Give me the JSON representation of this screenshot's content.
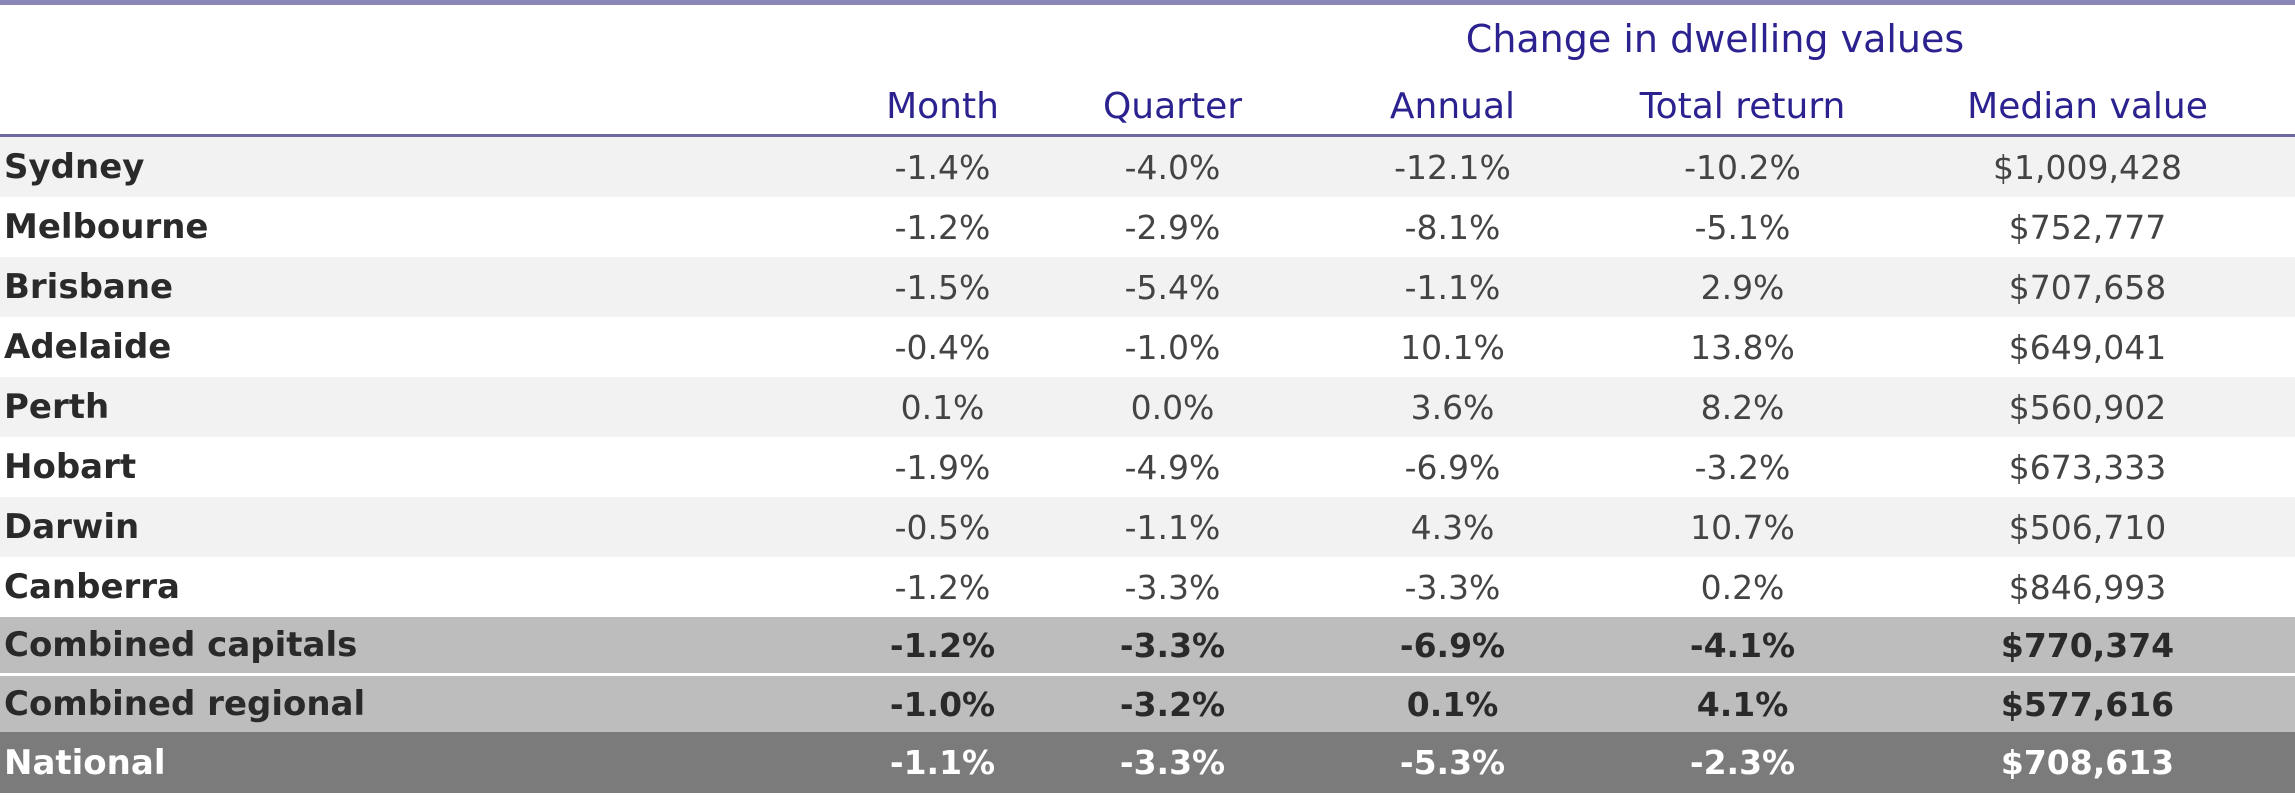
{
  "chart_data": {
    "type": "table",
    "title": "Change in dwelling values",
    "columns": [
      "Month",
      "Quarter",
      "Annual",
      "Total return",
      "Median value"
    ],
    "rows": [
      {
        "name": "Sydney",
        "values": [
          "-1.4%",
          "-4.0%",
          "-12.1%",
          "-10.2%",
          "$1,009,428"
        ],
        "style": "shade"
      },
      {
        "name": "Melbourne",
        "values": [
          "-1.2%",
          "-2.9%",
          "-8.1%",
          "-5.1%",
          "$752,777"
        ],
        "style": "plain"
      },
      {
        "name": "Brisbane",
        "values": [
          "-1.5%",
          "-5.4%",
          "-1.1%",
          "2.9%",
          "$707,658"
        ],
        "style": "shade"
      },
      {
        "name": "Adelaide",
        "values": [
          "-0.4%",
          "-1.0%",
          "10.1%",
          "13.8%",
          "$649,041"
        ],
        "style": "plain"
      },
      {
        "name": "Perth",
        "values": [
          "0.1%",
          "0.0%",
          "3.6%",
          "8.2%",
          "$560,902"
        ],
        "style": "shade"
      },
      {
        "name": "Hobart",
        "values": [
          "-1.9%",
          "-4.9%",
          "-6.9%",
          "-3.2%",
          "$673,333"
        ],
        "style": "plain"
      },
      {
        "name": "Darwin",
        "values": [
          "-0.5%",
          "-1.1%",
          "4.3%",
          "10.7%",
          "$506,710"
        ],
        "style": "shade"
      },
      {
        "name": "Canberra",
        "values": [
          "-1.2%",
          "-3.3%",
          "-3.3%",
          "0.2%",
          "$846,993"
        ],
        "style": "plain"
      },
      {
        "name": "Combined capitals",
        "values": [
          "-1.2%",
          "-3.3%",
          "-6.9%",
          "-4.1%",
          "$770,374"
        ],
        "style": "combined"
      },
      {
        "name": "Combined regional",
        "values": [
          "-1.0%",
          "-3.2%",
          "0.1%",
          "4.1%",
          "$577,616"
        ],
        "style": "combined"
      },
      {
        "name": "National",
        "values": [
          "-1.1%",
          "-3.3%",
          "-5.3%",
          "-2.3%",
          "$708,613"
        ],
        "style": "national"
      }
    ]
  },
  "colors": {
    "header_text": "#2b2290",
    "shade_row": "#f2f2f2",
    "combined_row": "#bdbdbd",
    "national_row": "#7b7b7b"
  }
}
